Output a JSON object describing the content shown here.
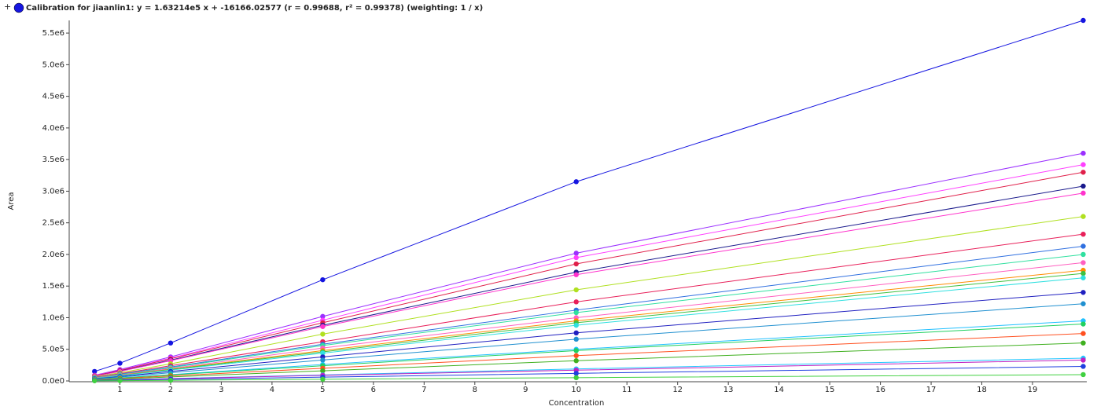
{
  "chart_data": {
    "type": "scatter",
    "title": "Calibration for jiaanlin1: y = 1.63214e5 x + -16166.02577 (r = 0.99688, r² = 0.99378)  (weighting: 1 / x)",
    "x_label": "Concentration",
    "y_label": "Area",
    "xlim": [
      0,
      20.07
    ],
    "ylim": [
      0,
      5700000
    ],
    "xticks": [
      1,
      2,
      3,
      4,
      5,
      6,
      7,
      8,
      9,
      10,
      11,
      12,
      13,
      14,
      15,
      16,
      17,
      18,
      19
    ],
    "yticks": [
      {
        "value": 0,
        "label": "0.0e0"
      },
      {
        "value": 500000,
        "label": "5.0e5"
      },
      {
        "value": 1000000,
        "label": "1.0e6"
      },
      {
        "value": 1500000,
        "label": "1.5e6"
      },
      {
        "value": 2000000,
        "label": "2.0e6"
      },
      {
        "value": 2500000,
        "label": "2.5e6"
      },
      {
        "value": 3000000,
        "label": "3.0e6"
      },
      {
        "value": 3500000,
        "label": "3.5e6"
      },
      {
        "value": 4000000,
        "label": "4.0e6"
      },
      {
        "value": 4500000,
        "label": "4.5e6"
      },
      {
        "value": 5000000,
        "label": "5.0e6"
      },
      {
        "value": 5500000,
        "label": "5.5e6"
      }
    ],
    "x": [
      0.5,
      1,
      2,
      5,
      10,
      20
    ],
    "series": [
      {
        "color": "#1515e0",
        "values": [
          150000,
          280000,
          600000,
          1600000,
          3150000,
          5700000
        ]
      },
      {
        "color": "#9b30ff",
        "values": [
          90000,
          180000,
          380000,
          1020000,
          2020000,
          3600000
        ]
      },
      {
        "color": "#ff40ff",
        "values": [
          85000,
          170000,
          360000,
          960000,
          1950000,
          3420000
        ]
      },
      {
        "color": "#e0204a",
        "values": [
          80000,
          165000,
          350000,
          920000,
          1850000,
          3300000
        ]
      },
      {
        "color": "#1a1a8c",
        "values": [
          75000,
          155000,
          330000,
          880000,
          1720000,
          3080000
        ]
      },
      {
        "color": "#ff33cc",
        "values": [
          74000,
          150000,
          320000,
          860000,
          1680000,
          2970000
        ]
      },
      {
        "color": "#b0e020",
        "values": [
          65000,
          130000,
          270000,
          740000,
          1440000,
          2600000
        ]
      },
      {
        "color": "#e8205a",
        "values": [
          58000,
          115000,
          240000,
          620000,
          1250000,
          2320000
        ]
      },
      {
        "color": "#3070e0",
        "values": [
          53000,
          107000,
          220000,
          580000,
          1120000,
          2130000
        ]
      },
      {
        "color": "#30e0a0",
        "values": [
          50000,
          100000,
          210000,
          560000,
          1080000,
          2000000
        ]
      },
      {
        "color": "#ff60c0",
        "values": [
          47000,
          94000,
          195000,
          520000,
          1000000,
          1870000
        ]
      },
      {
        "color": "#ff8c00",
        "values": [
          44000,
          88000,
          185000,
          480000,
          950000,
          1750000
        ]
      },
      {
        "color": "#40c040",
        "values": [
          42000,
          85000,
          180000,
          460000,
          920000,
          1700000
        ]
      },
      {
        "color": "#30e0e0",
        "values": [
          41000,
          82000,
          170000,
          440000,
          880000,
          1630000
        ]
      },
      {
        "color": "#2020c0",
        "values": [
          35000,
          70000,
          150000,
          380000,
          760000,
          1400000
        ]
      },
      {
        "color": "#2090d0",
        "values": [
          30000,
          61000,
          130000,
          330000,
          660000,
          1220000
        ]
      },
      {
        "color": "#20c0ff",
        "values": [
          24000,
          48000,
          100000,
          260000,
          500000,
          950000
        ]
      },
      {
        "color": "#20d060",
        "values": [
          22000,
          45000,
          95000,
          240000,
          480000,
          900000
        ]
      },
      {
        "color": "#ff5020",
        "values": [
          19000,
          38000,
          80000,
          200000,
          400000,
          750000
        ]
      },
      {
        "color": "#40b020",
        "values": [
          15000,
          30000,
          63000,
          160000,
          320000,
          600000
        ]
      },
      {
        "color": "#20c8ff",
        "values": [
          9000,
          18000,
          38000,
          95000,
          190000,
          360000
        ]
      },
      {
        "color": "#c020c0",
        "values": [
          8000,
          16000,
          35000,
          88000,
          170000,
          330000
        ]
      },
      {
        "color": "#2040e0",
        "values": [
          6000,
          12000,
          25000,
          60000,
          120000,
          230000
        ]
      },
      {
        "color": "#40d040",
        "values": [
          2500,
          5000,
          10000,
          27000,
          52000,
          100000
        ]
      }
    ]
  }
}
